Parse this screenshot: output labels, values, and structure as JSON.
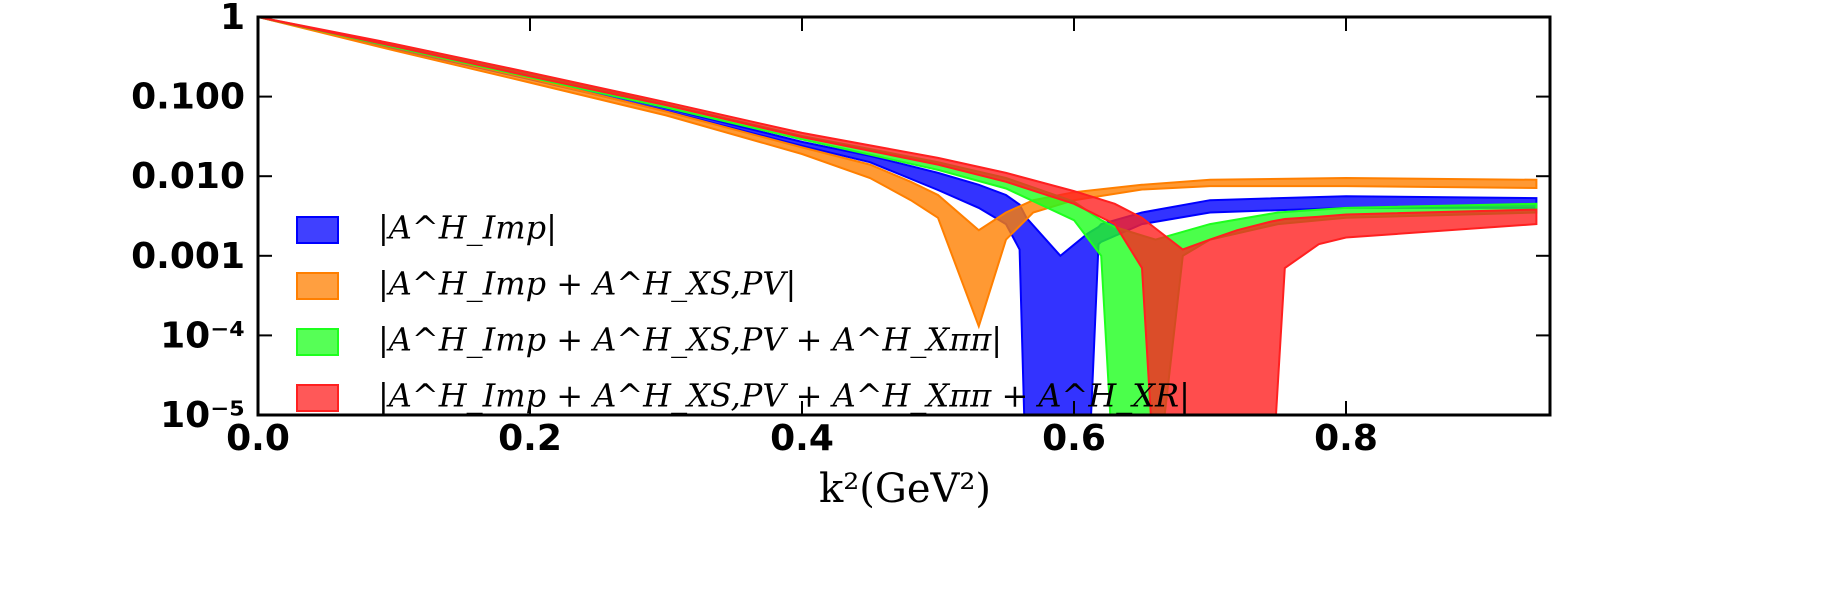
{
  "chart_data": {
    "type": "band",
    "x_label": "k²(GeV²)",
    "log_y": true,
    "xlim": [
      0,
      0.95
    ],
    "ylim": [
      1e-05,
      1
    ],
    "xticks": [
      {
        "value": 0,
        "label": "0.0"
      },
      0.2,
      0.4,
      0.6,
      0.8
    ],
    "yticks": [
      1,
      {
        "value": 0.1,
        "label": "0.100"
      },
      {
        "value": 0.01,
        "label": "0.010"
      },
      0.001,
      {
        "value": 0.0001,
        "label": "10⁻⁴"
      },
      {
        "value": 1e-05,
        "label": "10⁻⁵"
      }
    ],
    "series": [
      {
        "name": "|A^H_Imp|",
        "color": "#0000ff",
        "x": [
          0,
          0.1,
          0.2,
          0.3,
          0.4,
          0.45,
          0.5,
          0.53,
          0.55,
          0.56,
          0.565,
          0.59,
          0.61,
          0.618,
          0.62,
          0.65,
          0.7,
          0.8,
          0.94
        ],
        "upper": [
          1,
          0.43,
          0.18,
          0.072,
          0.027,
          0.018,
          0.011,
          0.0078,
          0.0058,
          0.0044,
          0.003,
          0.001,
          0.0019,
          0.0023,
          0.0025,
          0.0035,
          0.005,
          0.0056,
          0.0053
        ],
        "lower": [
          1,
          0.4,
          0.165,
          0.066,
          0.024,
          0.015,
          0.0067,
          0.004,
          0.0025,
          0.0012,
          1e-06,
          1e-06,
          1e-06,
          0.0014,
          0.0015,
          0.0025,
          0.0035,
          0.004,
          0.004
        ]
      },
      {
        "name": "|A^H_Imp + A^H_XS,PV|",
        "color": "#ff7f00",
        "x": [
          0,
          0.1,
          0.2,
          0.3,
          0.4,
          0.45,
          0.48,
          0.5,
          0.53,
          0.55,
          0.57,
          0.6,
          0.65,
          0.7,
          0.8,
          0.94
        ],
        "upper": [
          1,
          0.42,
          0.17,
          0.065,
          0.023,
          0.014,
          0.0085,
          0.0058,
          0.0021,
          0.0035,
          0.005,
          0.0063,
          0.0078,
          0.009,
          0.0095,
          0.009
        ],
        "lower": [
          1,
          0.38,
          0.15,
          0.058,
          0.019,
          0.0095,
          0.005,
          0.003,
          0.00013,
          0.0016,
          0.0035,
          0.005,
          0.0068,
          0.0075,
          0.0075,
          0.0071
        ]
      },
      {
        "name": "|A^H_Imp + A^H_XS,PV + A^H_Xππ|",
        "color": "#1eff1e",
        "x": [
          0,
          0.1,
          0.2,
          0.3,
          0.4,
          0.5,
          0.55,
          0.6,
          0.62,
          0.63,
          0.65,
          0.66,
          0.68,
          0.7,
          0.75,
          0.8,
          0.94
        ],
        "upper": [
          1,
          0.45,
          0.19,
          0.08,
          0.032,
          0.015,
          0.0095,
          0.0048,
          0.0028,
          0.0023,
          0.0018,
          0.0016,
          0.002,
          0.0025,
          0.0035,
          0.004,
          0.0045
        ],
        "lower": [
          1,
          0.42,
          0.175,
          0.073,
          0.029,
          0.012,
          0.007,
          0.0028,
          0.001,
          1e-06,
          1e-06,
          1e-06,
          0.001,
          0.0016,
          0.0025,
          0.003,
          0.0035
        ]
      },
      {
        "name": "|A^H_Imp + A^H_XS,PV + A^H_Xππ + A^H_XR|",
        "color": "#ff2020",
        "x": [
          0,
          0.1,
          0.2,
          0.3,
          0.4,
          0.5,
          0.55,
          0.6,
          0.63,
          0.65,
          0.66,
          0.68,
          0.7,
          0.72,
          0.745,
          0.755,
          0.78,
          0.8,
          0.94
        ],
        "upper": [
          1,
          0.46,
          0.2,
          0.085,
          0.035,
          0.017,
          0.011,
          0.0065,
          0.0045,
          0.003,
          0.0022,
          0.0012,
          0.0016,
          0.0021,
          0.0027,
          0.0029,
          0.0031,
          0.0033,
          0.0038
        ],
        "lower": [
          1,
          0.43,
          0.18,
          0.078,
          0.031,
          0.014,
          0.0085,
          0.0045,
          0.0025,
          0.0007,
          1e-06,
          1e-06,
          1e-06,
          1e-06,
          1e-06,
          0.0007,
          0.0014,
          0.0017,
          0.0025
        ]
      }
    ]
  }
}
